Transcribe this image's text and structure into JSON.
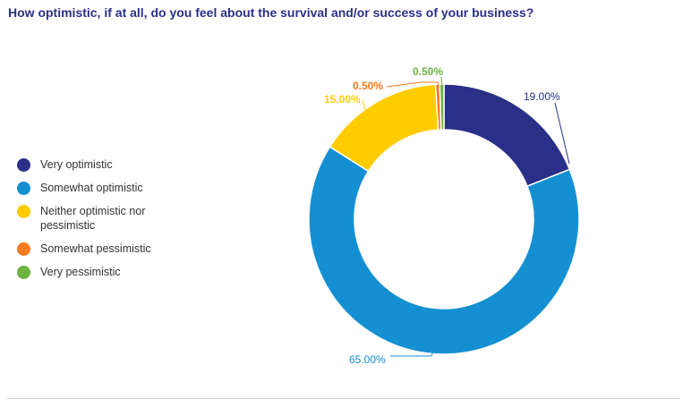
{
  "chart_data": {
    "type": "pie",
    "title": "How optimistic, if at all, do you feel about the survival and/or success of your business?",
    "categories": [
      "Very optimistic",
      "Somewhat optimistic",
      "Neither optimistic nor pessimistic",
      "Somewhat pessimistic",
      "Very pessimistic"
    ],
    "values": [
      19.0,
      65.0,
      15.0,
      0.5,
      0.5
    ],
    "labels": [
      "19.00%",
      "65.00%",
      "15.00%",
      "0.50%",
      "0.50%"
    ],
    "colors": [
      "#2a3088",
      "#1490d2",
      "#ffcc00",
      "#f47b20",
      "#6cb33f"
    ],
    "donut": true,
    "legend": "left"
  }
}
